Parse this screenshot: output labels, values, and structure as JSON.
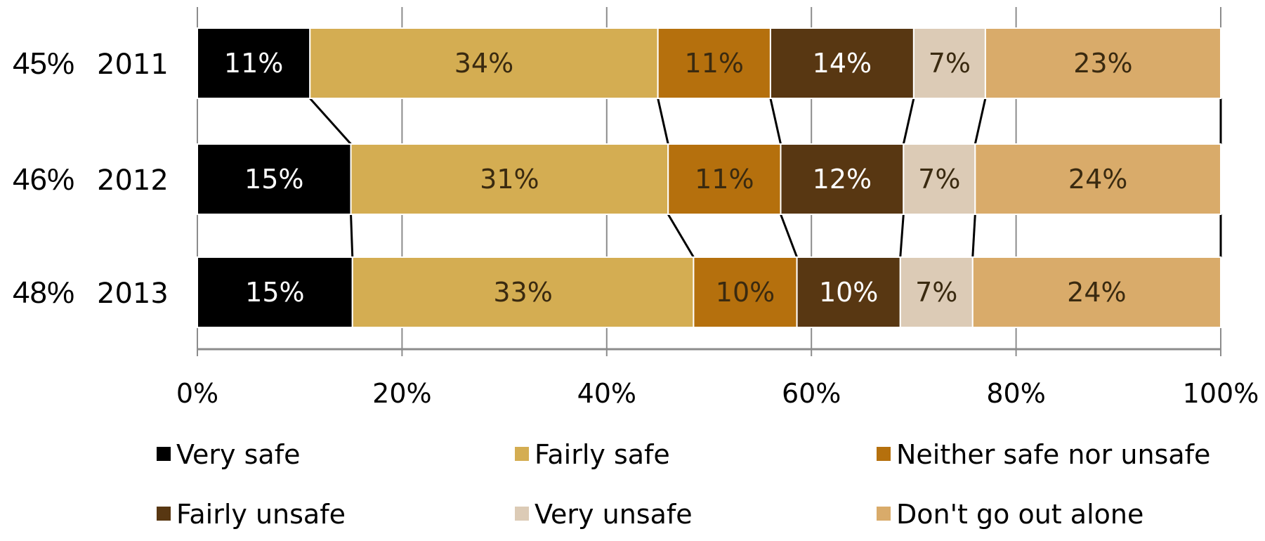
{
  "chart_data": {
    "type": "bar",
    "orientation": "horizontal",
    "stacked": true,
    "categories": [
      "2011",
      "2012",
      "2013"
    ],
    "row_totals": [
      "45%",
      "46%",
      "48%"
    ],
    "series": [
      {
        "name": "Very safe",
        "values": [
          11,
          15,
          15
        ],
        "labels": [
          "11%",
          "15%",
          "15%"
        ],
        "color": "#000000",
        "label_color": "#ffffff"
      },
      {
        "name": "Fairly safe",
        "values": [
          34,
          31,
          33
        ],
        "labels": [
          "34%",
          "31%",
          "33%"
        ],
        "color": "#d4ad52",
        "label_color": "#3a2a10"
      },
      {
        "name": "Neither safe nor unsafe",
        "values": [
          11,
          11,
          10
        ],
        "labels": [
          "11%",
          "11%",
          "10%"
        ],
        "color": "#b5700d",
        "label_color": "#3a2a10"
      },
      {
        "name": "Fairly unsafe",
        "values": [
          14,
          12,
          10
        ],
        "labels": [
          "14%",
          "12%",
          "10%"
        ],
        "color": "#583712",
        "label_color": "#ffffff"
      },
      {
        "name": "Very unsafe",
        "values": [
          7,
          7,
          7
        ],
        "labels": [
          "7%",
          "7%",
          "7%"
        ],
        "color": "#dccbb6",
        "label_color": "#3a2a10"
      },
      {
        "name": "Don't go out alone",
        "values": [
          23,
          24,
          24
        ],
        "labels": [
          "23%",
          "24%",
          "24%"
        ],
        "color": "#d9ab6a",
        "label_color": "#3a2a10"
      }
    ],
    "xlim": [
      0,
      100
    ],
    "x_ticks": [
      "0%",
      "20%",
      "40%",
      "60%",
      "80%",
      "100%"
    ],
    "series_lines": true,
    "legend_position": "bottom"
  }
}
